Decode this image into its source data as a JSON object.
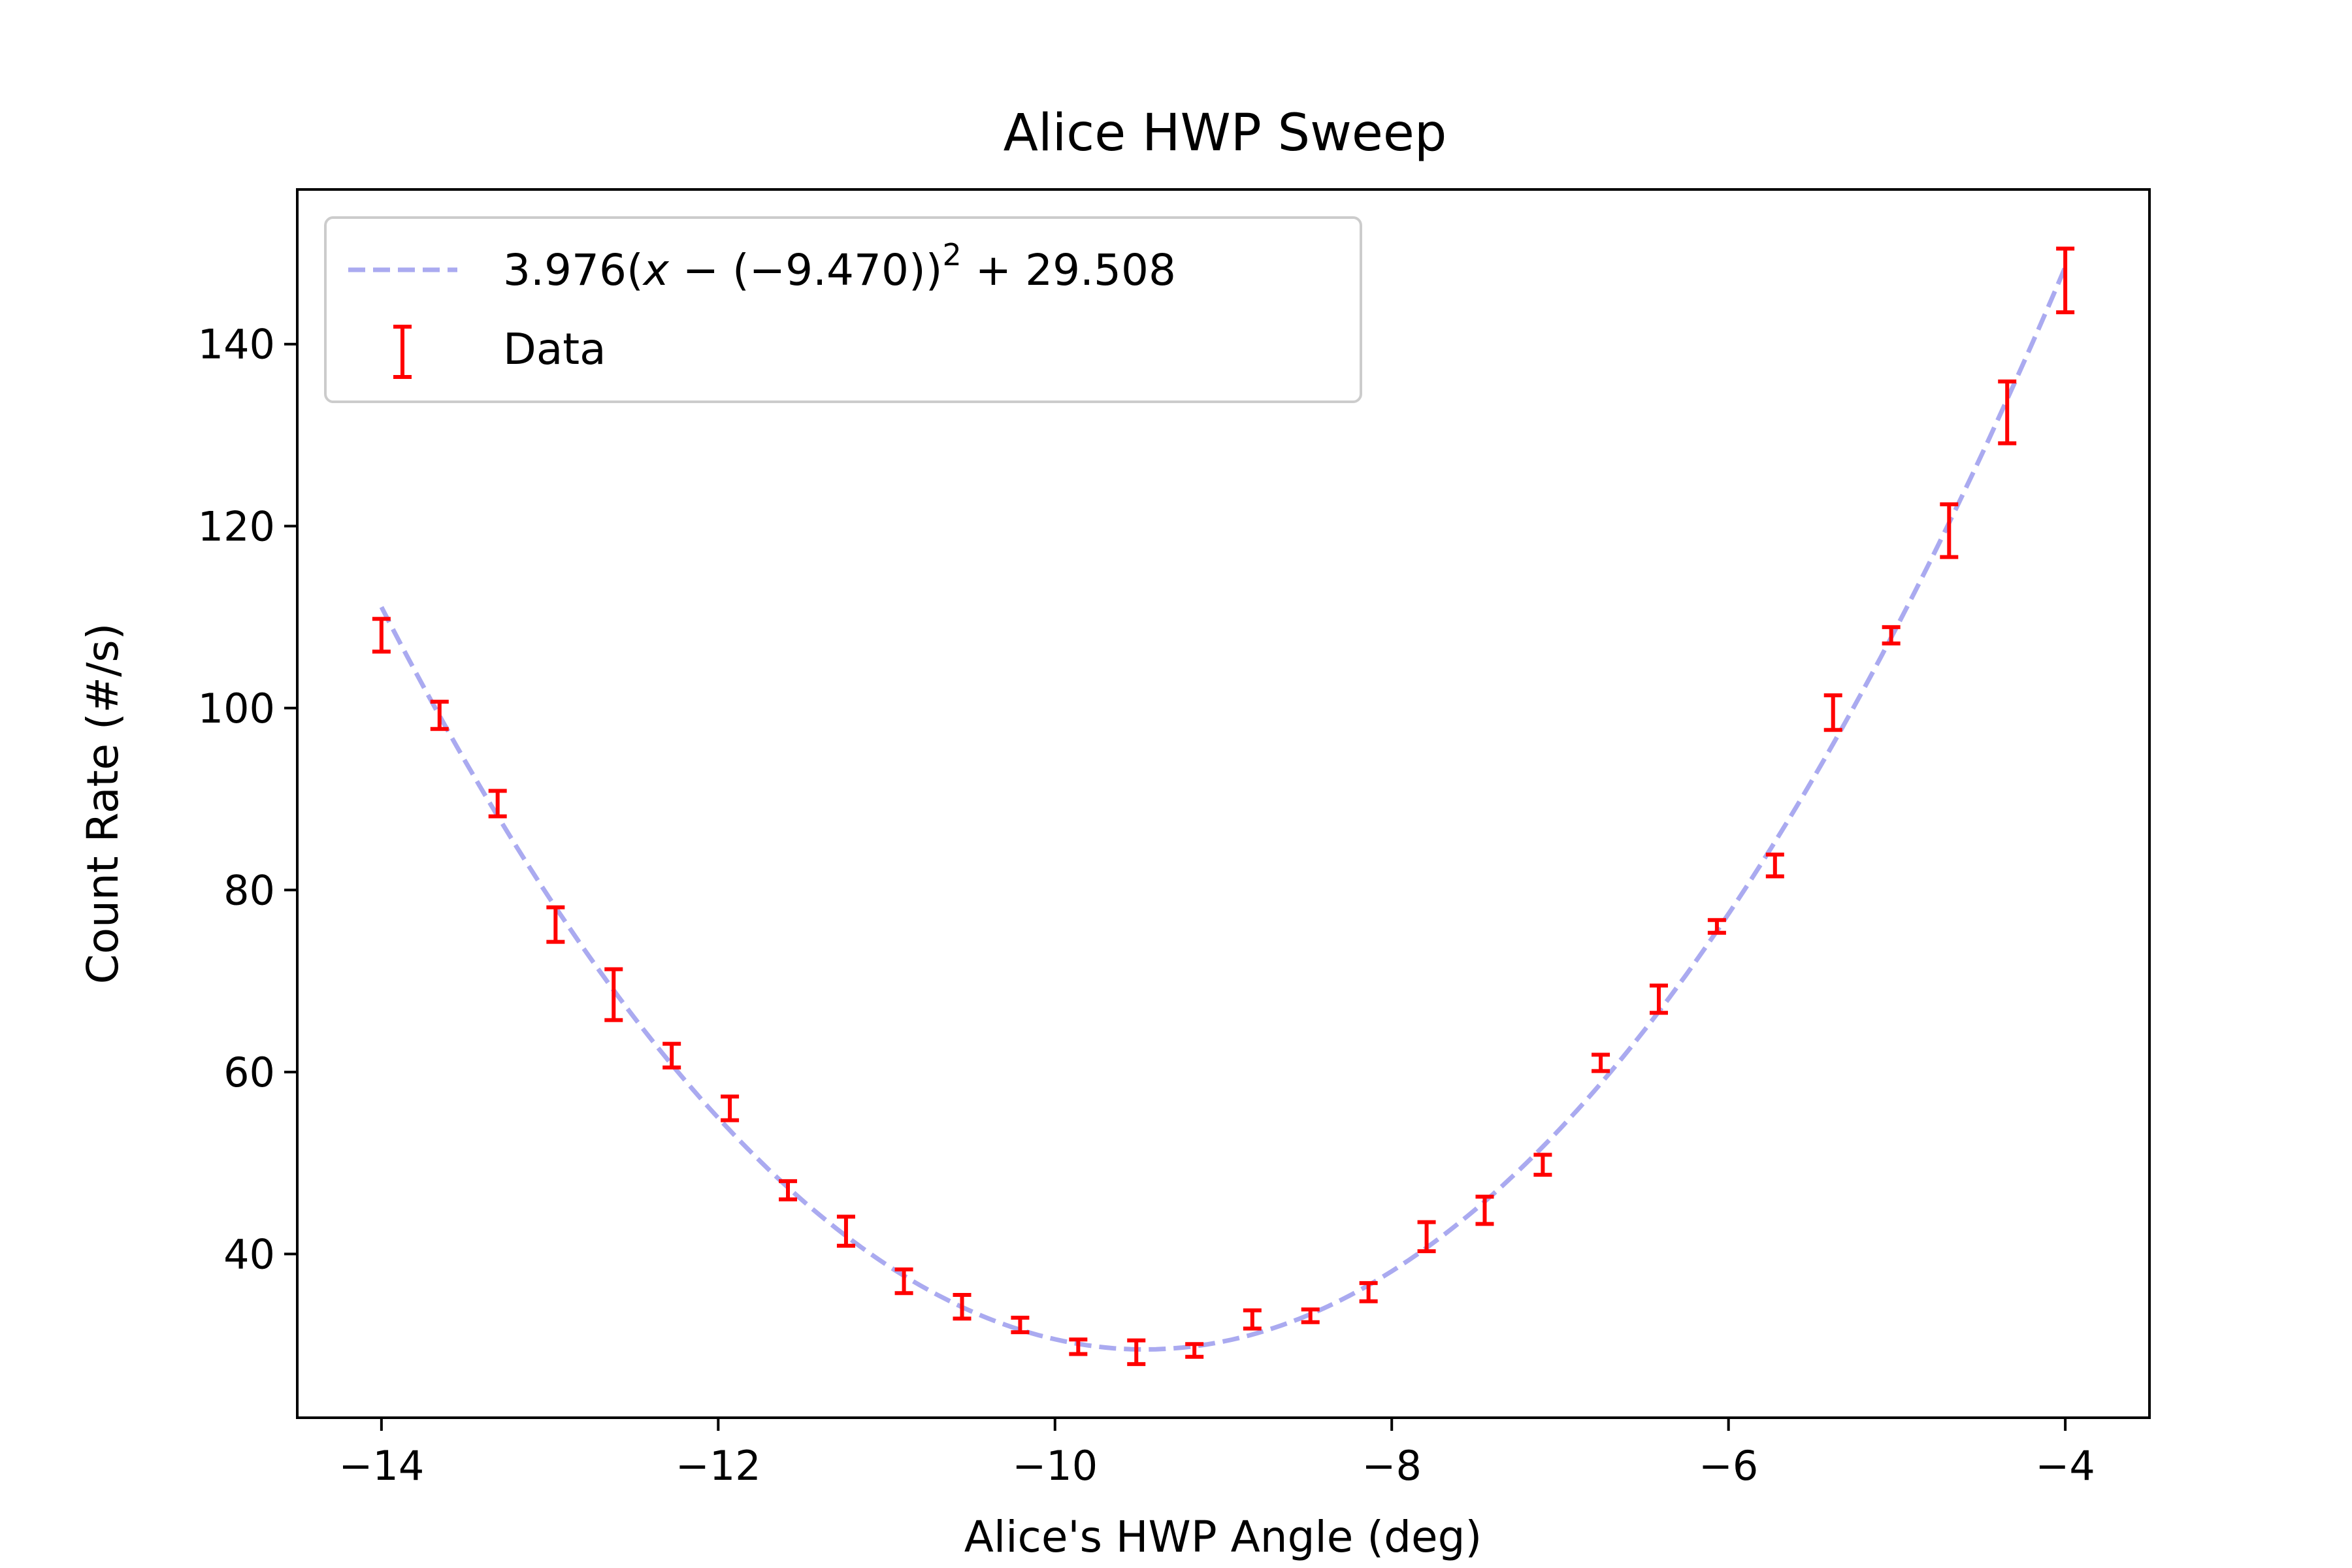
{
  "chart_data": {
    "type": "scatter",
    "title": "Alice HWP Sweep",
    "xlabel": "Alice's HWP Angle (deg)",
    "ylabel": "Count Rate (#/s)",
    "xlim": [
      -14.5,
      -3.5
    ],
    "ylim": [
      22,
      157
    ],
    "grid": false,
    "legend_position": "top-left",
    "x_ticks": [
      -14,
      -12,
      -10,
      -8,
      -6,
      -4
    ],
    "x_tick_labels": [
      "−14",
      "−12",
      "−10",
      "−8",
      "−6",
      "−4"
    ],
    "y_ticks": [
      40,
      60,
      80,
      100,
      120,
      140
    ],
    "y_tick_labels": [
      "40",
      "60",
      "80",
      "100",
      "120",
      "140"
    ],
    "fit": {
      "name_parts": [
        "3.976(",
        "x",
        " − (−9.470))",
        "2",
        " + 29.508"
      ],
      "a": 3.976,
      "x0": -9.47,
      "c": 29.508,
      "x_range": [
        -14.0,
        -4.0
      ],
      "color": "#aaaaf0",
      "style": "dashed"
    },
    "series": [
      {
        "name": "Data",
        "style": "errorbar",
        "color": "#ff0000",
        "x": [
          -14.0,
          -13.655,
          -13.31,
          -12.966,
          -12.621,
          -12.276,
          -11.931,
          -11.586,
          -11.241,
          -10.897,
          -10.552,
          -10.207,
          -9.862,
          -9.517,
          -9.172,
          -8.828,
          -8.483,
          -8.138,
          -7.793,
          -7.448,
          -7.103,
          -6.759,
          -6.414,
          -6.069,
          -5.724,
          -5.379,
          -5.034,
          -4.69,
          -4.345,
          -4.0
        ],
        "y": [
          108.0,
          99.2,
          89.5,
          76.2,
          68.5,
          61.8,
          56.0,
          47.0,
          42.5,
          37.0,
          34.2,
          32.2,
          29.8,
          29.2,
          29.4,
          32.8,
          33.2,
          35.8,
          41.9,
          44.8,
          49.8,
          61.0,
          68.0,
          76.0,
          82.7,
          99.5,
          108.0,
          119.5,
          132.5,
          147.0
        ],
        "err": [
          1.8,
          1.5,
          1.4,
          1.9,
          2.8,
          1.3,
          1.3,
          1.0,
          1.6,
          1.3,
          1.3,
          0.8,
          0.8,
          1.3,
          0.7,
          1.0,
          0.7,
          1.0,
          1.6,
          1.5,
          1.1,
          0.9,
          1.5,
          0.7,
          1.2,
          1.9,
          0.9,
          2.9,
          3.4,
          3.5
        ]
      }
    ]
  }
}
